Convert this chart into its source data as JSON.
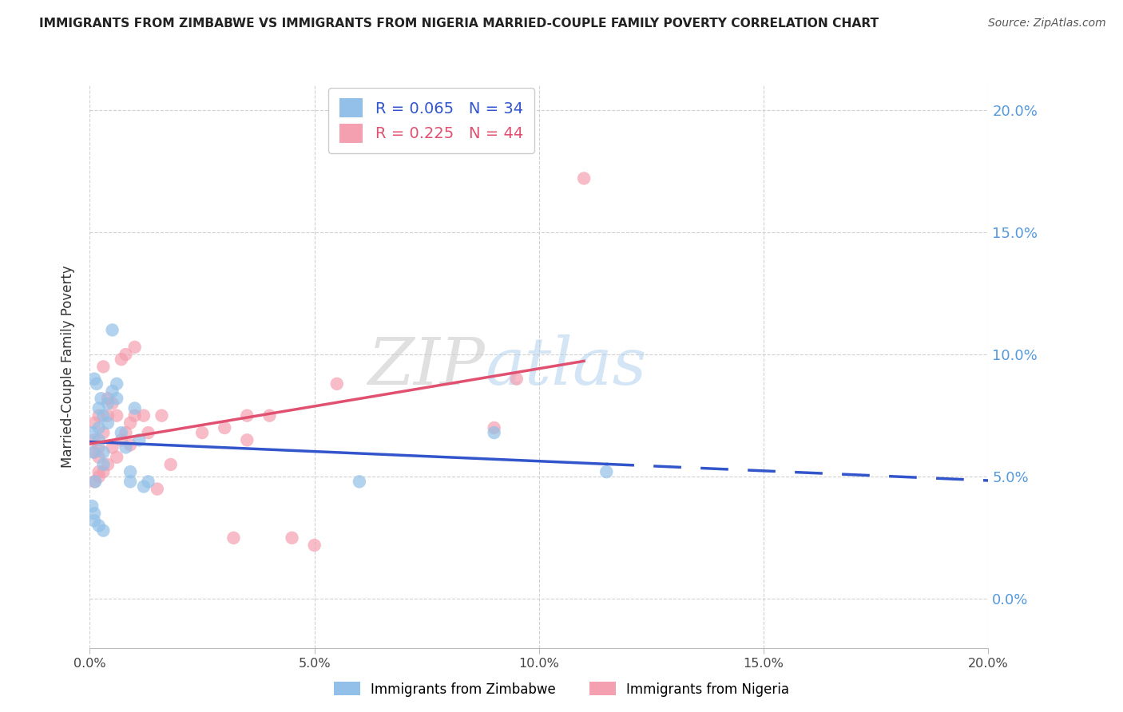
{
  "title": "IMMIGRANTS FROM ZIMBABWE VS IMMIGRANTS FROM NIGERIA MARRIED-COUPLE FAMILY POVERTY CORRELATION CHART",
  "source": "Source: ZipAtlas.com",
  "ylabel": "Married-Couple Family Poverty",
  "legend_zimbabwe": "Immigrants from Zimbabwe",
  "legend_nigeria": "Immigrants from Nigeria",
  "R_zimbabwe": 0.065,
  "N_zimbabwe": 34,
  "R_nigeria": 0.225,
  "N_nigeria": 44,
  "color_zimbabwe": "#92C0E8",
  "color_nigeria": "#F4A0B0",
  "color_trendline_zimbabwe": "#3355CC",
  "color_trendline_nigeria": "#E05070",
  "color_right_axis": "#5599DD",
  "xlim": [
    0.0,
    0.2
  ],
  "ylim": [
    -0.02,
    0.21
  ],
  "plot_ylim": [
    -0.02,
    0.21
  ],
  "yticks": [
    0.0,
    0.05,
    0.1,
    0.15,
    0.2
  ],
  "xticks": [
    0.0,
    0.05,
    0.1,
    0.15,
    0.2
  ],
  "zimbabwe_x": [
    0.0005,
    0.0008,
    0.001,
    0.0012,
    0.0015,
    0.002,
    0.002,
    0.002,
    0.0025,
    0.003,
    0.003,
    0.003,
    0.004,
    0.004,
    0.005,
    0.005,
    0.006,
    0.006,
    0.007,
    0.008,
    0.009,
    0.009,
    0.01,
    0.011,
    0.012,
    0.013,
    0.0005,
    0.001,
    0.001,
    0.002,
    0.003,
    0.06,
    0.09,
    0.115
  ],
  "zimbabwe_y": [
    0.068,
    0.06,
    0.09,
    0.048,
    0.088,
    0.065,
    0.07,
    0.078,
    0.082,
    0.055,
    0.06,
    0.075,
    0.072,
    0.08,
    0.085,
    0.11,
    0.082,
    0.088,
    0.068,
    0.062,
    0.048,
    0.052,
    0.078,
    0.065,
    0.046,
    0.048,
    0.038,
    0.032,
    0.035,
    0.03,
    0.028,
    0.048,
    0.068,
    0.052
  ],
  "nigeria_x": [
    0.001,
    0.001,
    0.001,
    0.002,
    0.002,
    0.002,
    0.002,
    0.003,
    0.003,
    0.003,
    0.004,
    0.004,
    0.004,
    0.005,
    0.005,
    0.006,
    0.006,
    0.007,
    0.007,
    0.008,
    0.008,
    0.009,
    0.009,
    0.01,
    0.01,
    0.012,
    0.013,
    0.015,
    0.016,
    0.018,
    0.025,
    0.03,
    0.032,
    0.035,
    0.04,
    0.045,
    0.05,
    0.055,
    0.09,
    0.095,
    0.11,
    0.001,
    0.002,
    0.035
  ],
  "nigeria_y": [
    0.065,
    0.072,
    0.06,
    0.05,
    0.058,
    0.062,
    0.075,
    0.052,
    0.068,
    0.095,
    0.055,
    0.075,
    0.082,
    0.062,
    0.08,
    0.058,
    0.075,
    0.065,
    0.098,
    0.068,
    0.1,
    0.063,
    0.072,
    0.075,
    0.103,
    0.075,
    0.068,
    0.045,
    0.075,
    0.055,
    0.068,
    0.07,
    0.025,
    0.075,
    0.075,
    0.025,
    0.022,
    0.088,
    0.07,
    0.09,
    0.172,
    0.048,
    0.052,
    0.065
  ]
}
